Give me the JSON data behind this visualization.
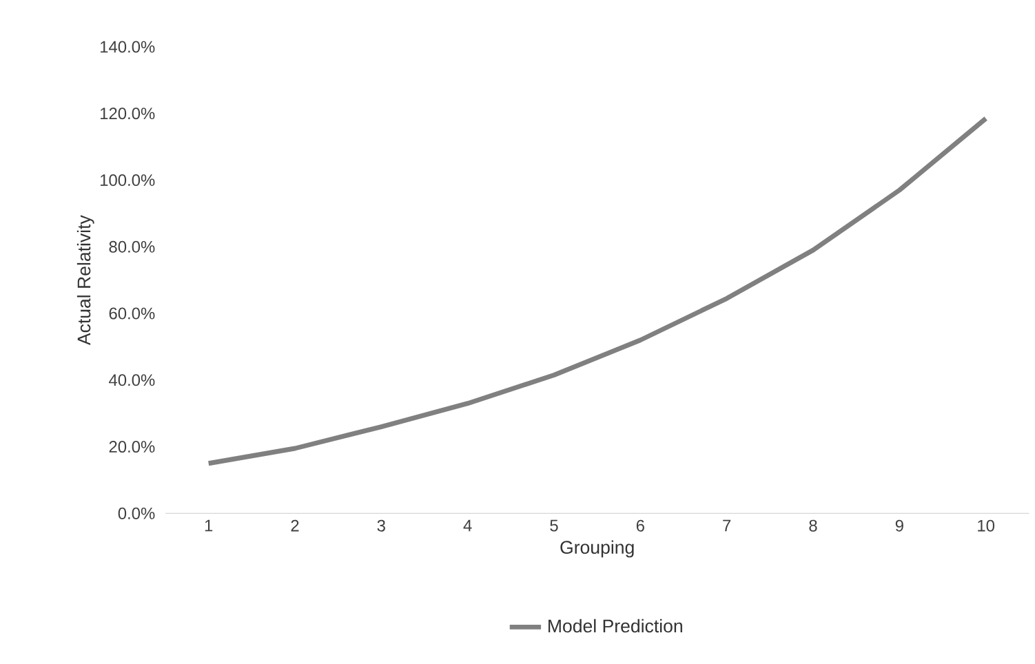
{
  "chart_data": {
    "type": "line",
    "xlabel": "Grouping",
    "ylabel": "Actual Relativity",
    "categories": [
      "1",
      "2",
      "3",
      "4",
      "5",
      "6",
      "7",
      "8",
      "9",
      "10"
    ],
    "series": [
      {
        "name": "Model Prediction",
        "color": "#808080",
        "values": [
          15,
          19.5,
          26,
          33,
          41.5,
          52,
          64.5,
          79,
          97,
          118.5
        ]
      }
    ],
    "ylim": [
      0,
      140
    ],
    "yticks": [
      {
        "value": 0,
        "label": "0.0%"
      },
      {
        "value": 20,
        "label": "20.0%"
      },
      {
        "value": 40,
        "label": "40.0%"
      },
      {
        "value": 60,
        "label": "60.0%"
      },
      {
        "value": 80,
        "label": "80.0%"
      },
      {
        "value": 100,
        "label": "100.0%"
      },
      {
        "value": 120,
        "label": "120.0%"
      },
      {
        "value": 140,
        "label": "140.0%"
      }
    ],
    "grid": false,
    "legend": "bottom",
    "marker": "none",
    "line_style": "solid"
  }
}
